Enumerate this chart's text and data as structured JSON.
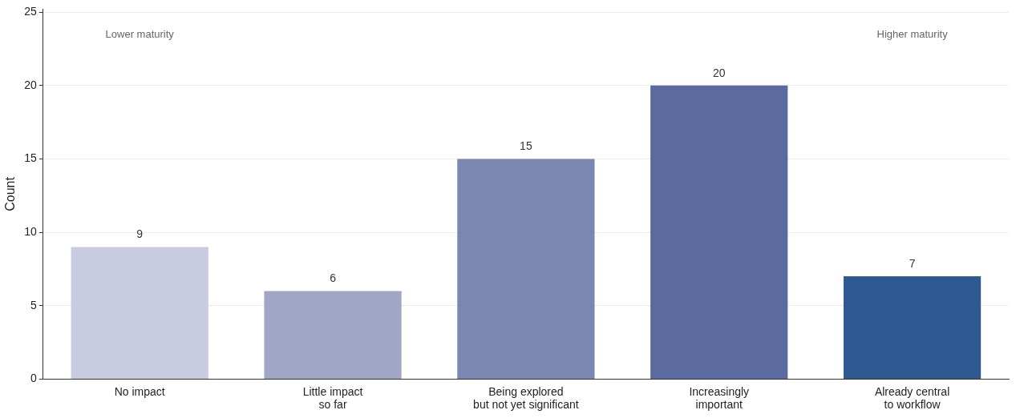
{
  "chart_data": {
    "type": "bar",
    "ylabel": "Count",
    "categories": [
      "No impact",
      "Little impact\nso far",
      "Being explored\nbut not yet significant",
      "Increasingly\nimportant",
      "Already central\nto workflow"
    ],
    "values": [
      9,
      6,
      15,
      20,
      7
    ],
    "colors": [
      "#c9cce0",
      "#a1a6c6",
      "#7b87b1",
      "#5b6b9f",
      "#2f5a91"
    ],
    "ylim": [
      0,
      25.2
    ],
    "yticks": [
      0,
      5,
      10,
      15,
      20,
      25
    ],
    "grid": "y",
    "data_labels": true,
    "annotations": [
      "Lower maturity",
      "Higher maturity"
    ]
  }
}
